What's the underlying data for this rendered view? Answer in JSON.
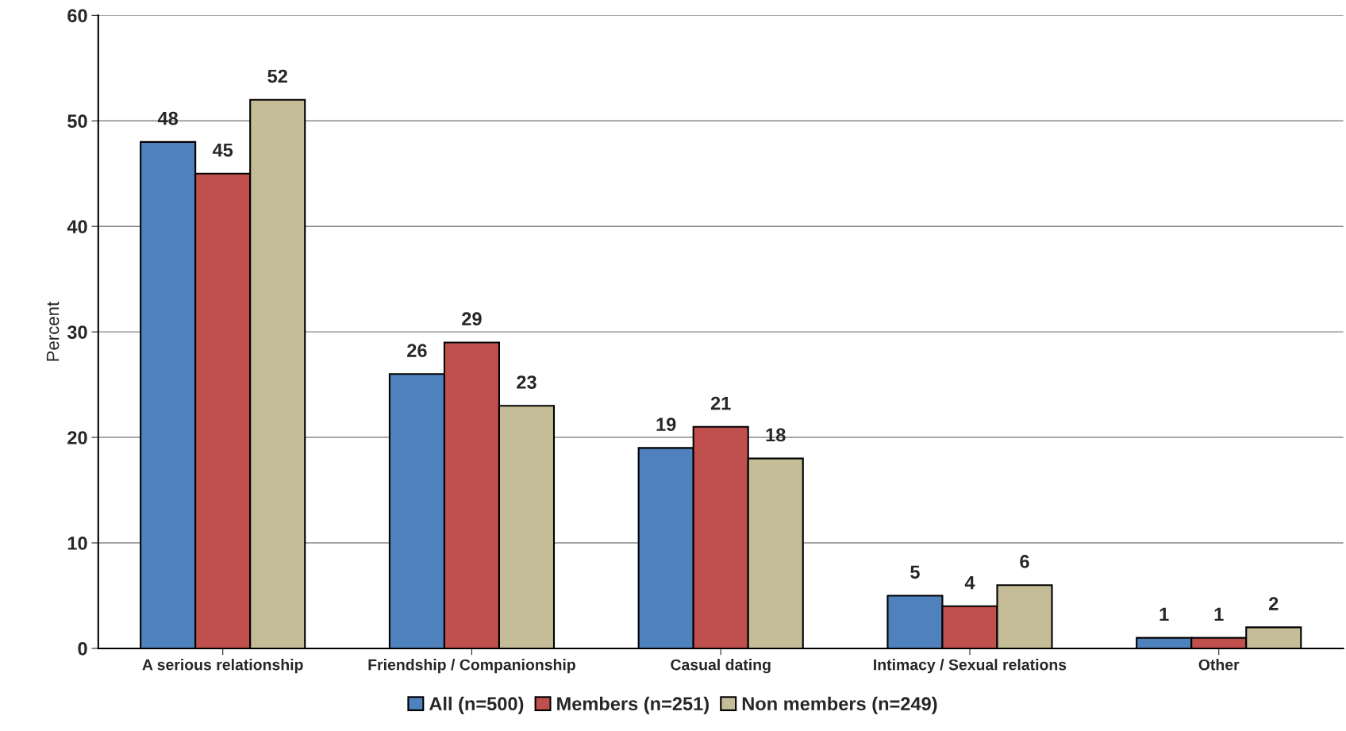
{
  "chart_data": {
    "type": "bar",
    "ylabel": "Percent",
    "categories": [
      "A serious relationship",
      "Friendship / Companionship",
      "Casual dating",
      "Intimacy / Sexual relations",
      "Other"
    ],
    "series": [
      {
        "name": "All (n=500)",
        "color": "#4f81bd",
        "values": [
          48,
          26,
          19,
          5,
          1
        ]
      },
      {
        "name": "Members (n=251)",
        "color": "#c0504d",
        "values": [
          45,
          29,
          21,
          4,
          1
        ]
      },
      {
        "name": "Non members (n=249)",
        "color": "#c4bd97",
        "values": [
          52,
          23,
          18,
          6,
          2
        ]
      }
    ],
    "ylim": [
      0,
      60
    ],
    "yticks": [
      0,
      10,
      20,
      30,
      40,
      50,
      60
    ],
    "grid": "y",
    "legend": "bottom",
    "data_labels": true
  }
}
